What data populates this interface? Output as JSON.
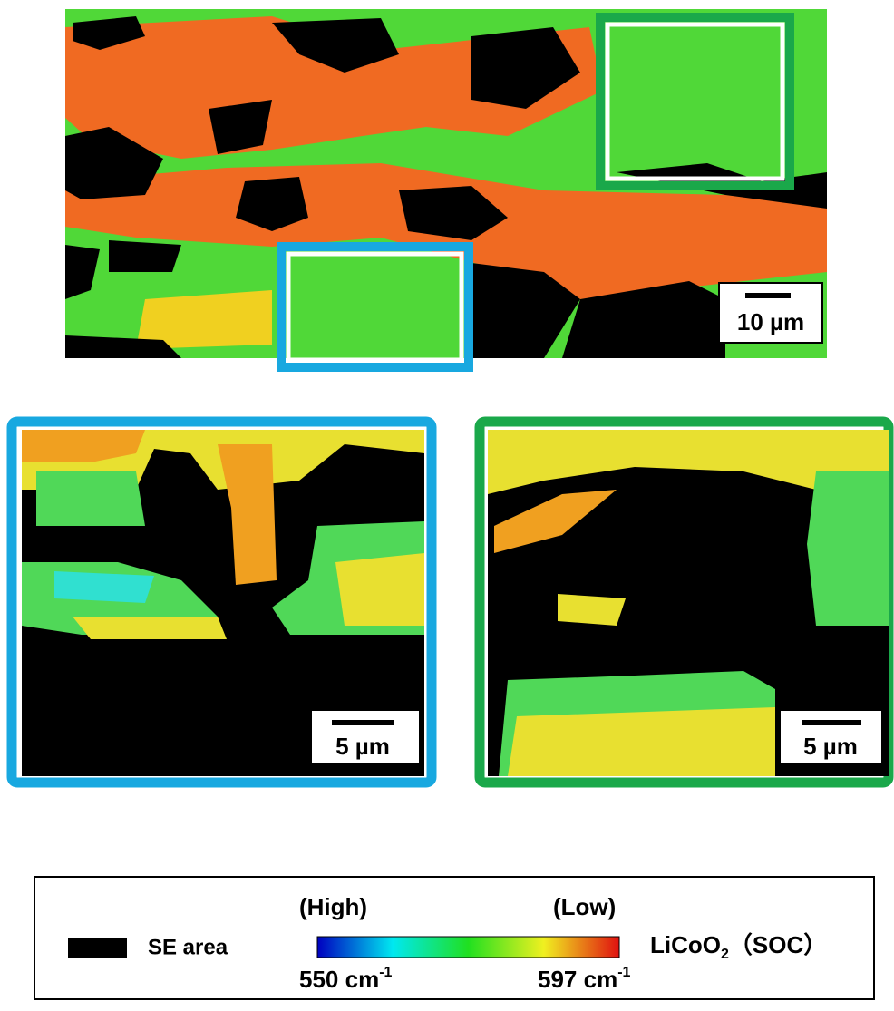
{
  "figure": {
    "overview": {
      "scale_bar": "10 µm"
    },
    "blue_inset": {
      "scale_bar": "5 µm"
    },
    "green_inset": {
      "scale_bar": "5 µm"
    },
    "legend": {
      "se_area": "SE area",
      "high": "(High)",
      "low": "(Low)",
      "min": {
        "text": "550 cm",
        "sup": "-1"
      },
      "max": {
        "text": "597 cm",
        "sup": "-1"
      },
      "material": {
        "text": "LiCoO",
        "sub": "2",
        "suffix": "（SOC）"
      }
    }
  }
}
